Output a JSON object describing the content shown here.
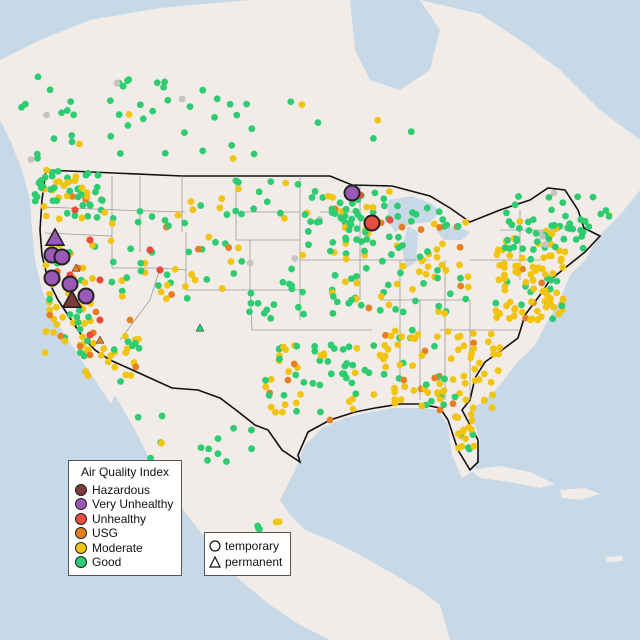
{
  "legend": {
    "title": "Air Quality Index",
    "categories": [
      {
        "label": "Hazardous",
        "color": "#7e3b3b"
      },
      {
        "label": "Very Unhealthy",
        "color": "#9b59b6"
      },
      {
        "label": "Unhealthy",
        "color": "#e74c3c"
      },
      {
        "label": "USG",
        "color": "#e67e22"
      },
      {
        "label": "Moderate",
        "color": "#f1c40f"
      },
      {
        "label": "Good",
        "color": "#2ecc71"
      }
    ]
  },
  "shape_legend": {
    "temporary": "temporary",
    "permanent": "permanent"
  },
  "colors": {
    "water": "#c7d8e6",
    "land": "#f2ece8",
    "nodata": "#c4c4c4"
  }
}
